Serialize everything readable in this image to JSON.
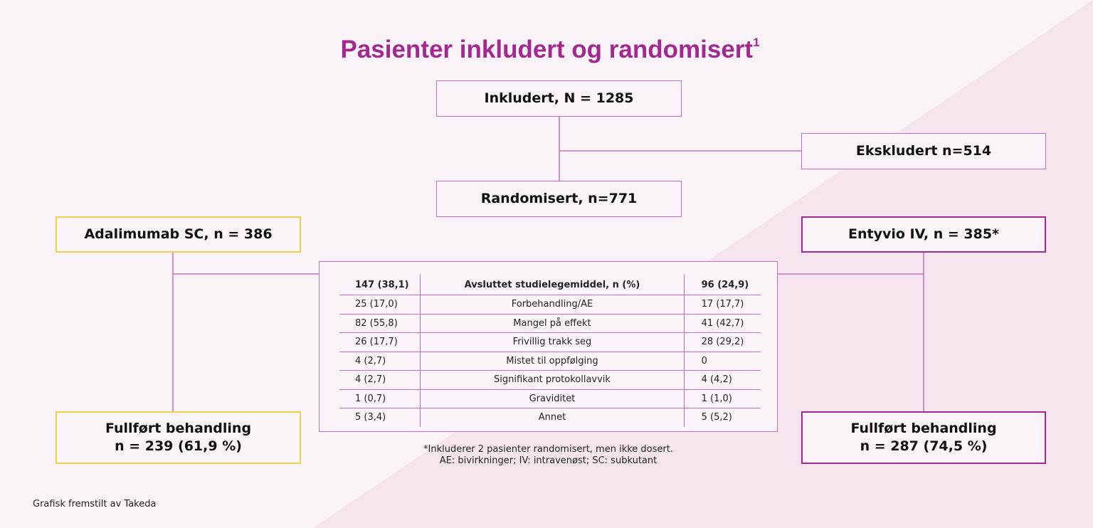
{
  "title": "Pasienter inkludert og randomisert",
  "title_superscript": "1",
  "colors": {
    "title": "#a3288f",
    "line": "#c56fb8",
    "adalimumab_border": "#f2cf4a",
    "entyvio_border": "#a3288f",
    "background": "#f9f3f7",
    "background_diagonal": "#f6e4ee"
  },
  "boxes": {
    "included": "Inkludert, N = 1285",
    "excluded": "Ekskludert n=514",
    "randomized": "Randomisert, n=771",
    "adalimumab": "Adalimumab SC, n = 386",
    "entyvio": "Entyvio IV, n = 385*",
    "adalimumab_completed": {
      "line1": "Fullført behandling",
      "line2": "n = 239 (61,9 %)"
    },
    "entyvio_completed": {
      "line1": "Fullført behandling",
      "line2": "n = 287 (74,5 %)"
    }
  },
  "discontinuation_table": {
    "header": {
      "left": "147 (38,1)",
      "middle": "Avsluttet studielegemiddel, n (%)",
      "right": "96 (24,9)"
    },
    "rows": [
      {
        "left": "25 (17,0)",
        "middle": "Forbehandling/AE",
        "right": "17 (17,7)"
      },
      {
        "left": "82 (55,8)",
        "middle": "Mangel på effekt",
        "right": "41 (42,7)"
      },
      {
        "left": "26 (17,7)",
        "middle": "Frivillig trakk seg",
        "right": "28 (29,2)"
      },
      {
        "left": "4 (2,7)",
        "middle": "Mistet til oppfølging",
        "right": "0"
      },
      {
        "left": "4 (2,7)",
        "middle": "Signifikant protokollavvik",
        "right": "4 (4,2)"
      },
      {
        "left": "1 (0,7)",
        "middle": "Graviditet",
        "right": "1 (1,0)"
      },
      {
        "left": "5 (3,4)",
        "middle": "Annet",
        "right": "5 (5,2)"
      }
    ]
  },
  "footnote": {
    "line1": "*Inkluderer 2 pasienter randomisert, men ikke dosert.",
    "line2": "AE: bivirkninger; IV: intravenøst; SC: subkutant"
  },
  "credit": "Grafisk fremstilt av Takeda"
}
